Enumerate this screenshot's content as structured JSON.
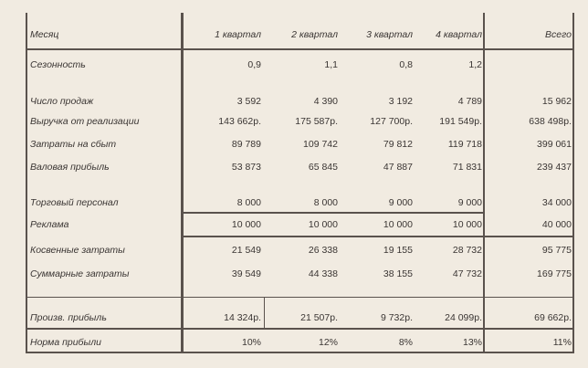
{
  "header": {
    "label": "Месяц",
    "columns": [
      "1 квартал",
      "2 квартал",
      "3 квартал",
      "4 квартал",
      "Всего"
    ]
  },
  "rows": [
    {
      "label": "Сезонность",
      "values": [
        "0,9",
        "1,1",
        "0,8",
        "1,2",
        ""
      ]
    },
    {
      "label": "Число продаж",
      "values": [
        "3 592",
        "4 390",
        "3 192",
        "4 789",
        "15 962"
      ]
    },
    {
      "label": "Выручка от реализации",
      "values": [
        "143 662р.",
        "175 587р.",
        "127 700р.",
        "191 549р.",
        "638 498р."
      ]
    },
    {
      "label": "Затраты на сбыт",
      "values": [
        "89 789",
        "109 742",
        "79 812",
        "119 718",
        "399 061"
      ]
    },
    {
      "label": "Валовая прибыль",
      "values": [
        "53 873",
        "65 845",
        "47 887",
        "71 831",
        "239 437"
      ]
    },
    {
      "label": "Торговый персонал",
      "values": [
        "8 000",
        "8 000",
        "9 000",
        "9 000",
        "34 000"
      ]
    },
    {
      "label": "Реклама",
      "values": [
        "10 000",
        "10 000",
        "10 000",
        "10 000",
        "40 000"
      ]
    },
    {
      "label": "Косвенные затраты",
      "values": [
        "21 549",
        "26 338",
        "19 155",
        "28 732",
        "95 775"
      ]
    },
    {
      "label": "Суммарные затраты",
      "values": [
        "39 549",
        "44 338",
        "38 155",
        "47 732",
        "169 775"
      ]
    },
    {
      "label": "Произв. прибыль",
      "values": [
        "14 324р.",
        "21 507р.",
        "9 732р.",
        "24 099р.",
        "69 662р."
      ]
    },
    {
      "label": "Норма прибыли",
      "values": [
        "10%",
        "12%",
        "8%",
        "13%",
        "11%"
      ]
    }
  ]
}
